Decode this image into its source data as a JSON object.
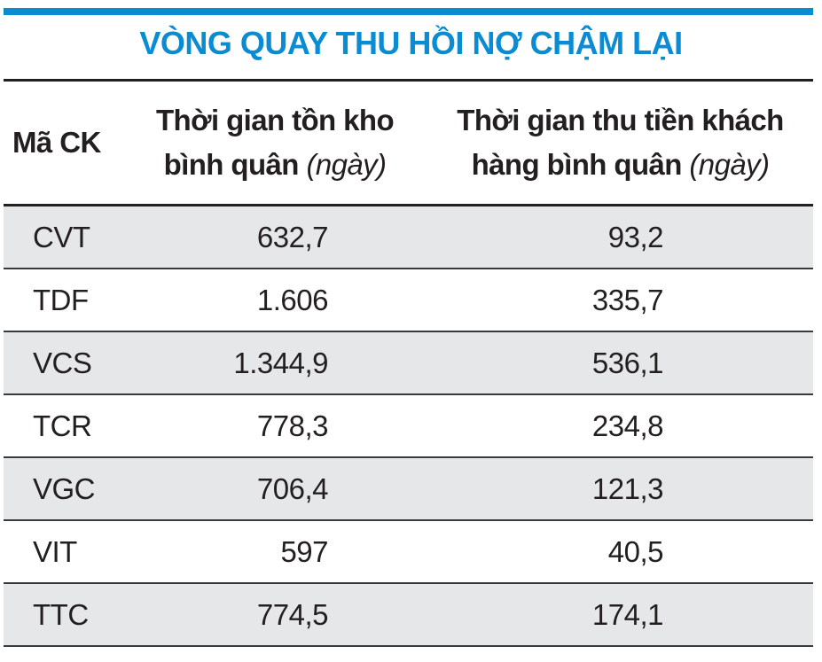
{
  "title": "VÒNG QUAY THU HỒI NỢ CHẬM LẠI",
  "colors": {
    "accent": "#0a8bd2",
    "row_shade": "#e6e7e8",
    "rule": "#231f20"
  },
  "chart_data": {
    "type": "table",
    "title": "VÒNG QUAY THU HỒI NỢ CHẬM LẠI",
    "columns": [
      {
        "label": "Mã CK"
      },
      {
        "label": "Thời gian tồn kho bình quân",
        "unit": "(ngày)",
        "line1": "Thời gian tồn kho",
        "line2": "bình quân"
      },
      {
        "label": "Thời gian thu tiền khách hàng bình quân",
        "unit": "(ngày)",
        "line1": "Thời gian thu tiền khách",
        "line2": "hàng bình quân"
      }
    ],
    "rows": [
      {
        "code": "CVT",
        "inventory_days": "632,7",
        "receivable_days": "93,2"
      },
      {
        "code": "TDF",
        "inventory_days": "1.606",
        "receivable_days": "335,7"
      },
      {
        "code": "VCS",
        "inventory_days": "1.344,9",
        "receivable_days": "536,1"
      },
      {
        "code": "TCR",
        "inventory_days": "778,3",
        "receivable_days": "234,8"
      },
      {
        "code": "VGC",
        "inventory_days": "706,4",
        "receivable_days": "121,3"
      },
      {
        "code": "VIT",
        "inventory_days": "597",
        "receivable_days": "40,5"
      },
      {
        "code": "TTC",
        "inventory_days": "774,5",
        "receivable_days": "174,1"
      }
    ]
  }
}
